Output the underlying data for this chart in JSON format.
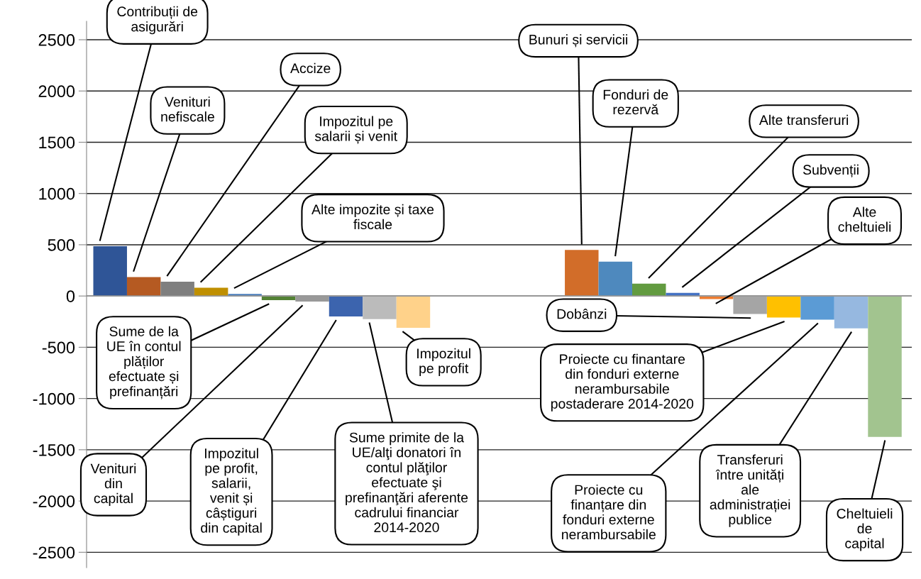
{
  "chart_data": {
    "type": "bar",
    "categories": [
      null,
      null,
      null,
      null,
      null,
      null,
      null,
      null,
      null,
      null,
      null,
      null,
      null,
      null,
      null,
      null,
      null,
      null,
      null,
      null,
      null,
      null,
      null,
      null
    ],
    "values": [
      485,
      185,
      140,
      80,
      20,
      -40,
      -55,
      -200,
      -225,
      -310,
      null,
      null,
      null,
      null,
      450,
      335,
      120,
      30,
      -30,
      -175,
      -210,
      -230,
      -315,
      -1375
    ],
    "colors": [
      "#2f5597",
      "#b55a22",
      "#7f7f7f",
      "#bf8f00",
      "#4a7ebb",
      "#548235",
      "#999999",
      "#3c64ae",
      "#bbbbbb",
      "#ffd28a",
      "#ffffff",
      "#ffffff",
      "#ffffff",
      "#ffffff",
      "#d26d29",
      "#4e89be",
      "#629b40",
      "#4472c4",
      "#ed7d31",
      "#a5a5a5",
      "#ffc000",
      "#5b9bd5",
      "#96b8e0",
      "#a2c48f"
    ],
    "annotations": [
      "Contribuții de\nasigurări",
      "Venituri\nnefiscale",
      "Accize",
      "Impozitul pe\nsalarii și venit",
      "Alte impozite și taxe\nfiscale",
      "Sume de la\nUE în contul\nplăților\nefectuate și\nprefinanțări",
      "Venituri\ndin\ncapital",
      "Impozitul\npe profit,\nsalarii,\nvenit și\ncâștiguri\ndin capital",
      "Sume primite de la\nUE/alţi donatori în\ncontul plăţilor\nefectuate şi\nprefinanţări aferente\ncadrului financiar\n2014-2020",
      "Impozitul\npe profit",
      "Bunuri și servicii",
      "Fonduri de\nrezervă",
      "Alte transferuri",
      "Subvenții",
      "Alte\ncheltuieli",
      "Dobânzi",
      "Proiecte cu finantare\ndin fonduri externe\nnerambursabile\npostaderare 2014-2020",
      "Proiecte cu\nfinanțare din\nfonduri externe\nnerambursabile",
      "Transferuri\nîntre unități\nale\nadministrației\npublice",
      "Cheltuieli\nde\ncapital"
    ],
    "ylim": [
      -2650,
      2680
    ],
    "yticks": [
      -2500,
      -2000,
      -1500,
      -1000,
      -500,
      0,
      500,
      1000,
      1500,
      2000,
      2500
    ],
    "grid": "y",
    "tick_labels": "y"
  }
}
